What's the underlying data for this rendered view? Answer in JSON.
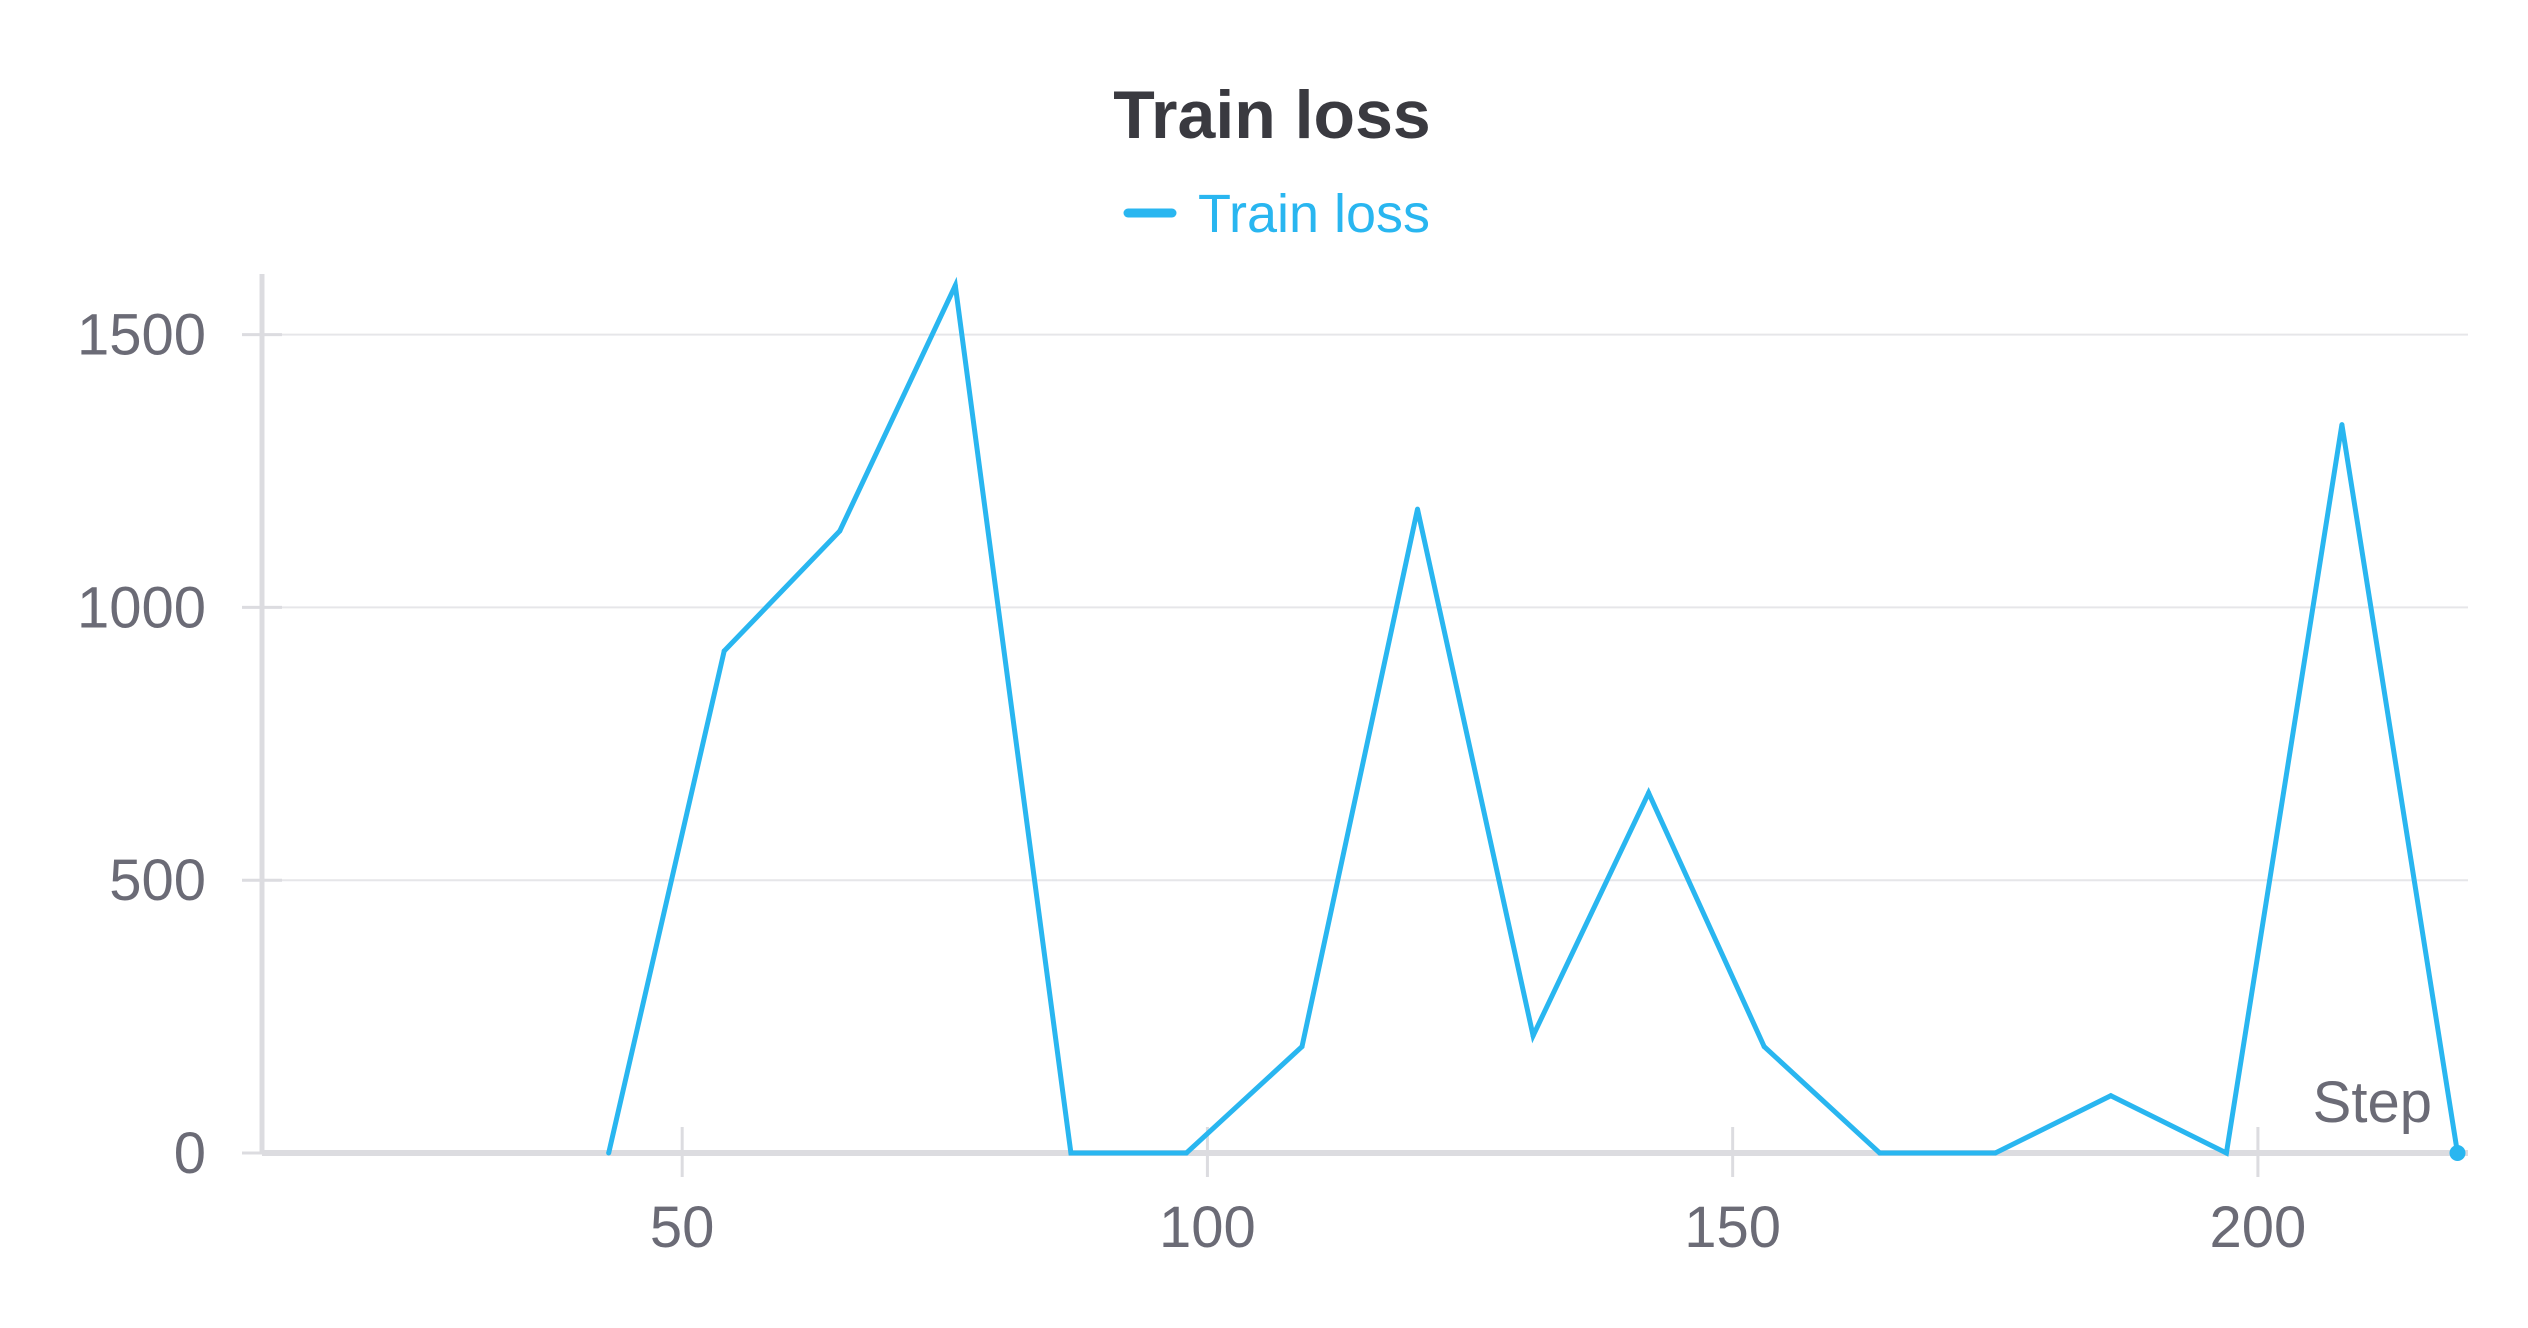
{
  "chart_data": {
    "type": "line",
    "title": "Train loss",
    "xlabel": "Step",
    "ylabel": "",
    "xlim": [
      10,
      220
    ],
    "ylim": [
      0,
      1600
    ],
    "x_ticks": [
      50,
      100,
      150,
      200
    ],
    "y_ticks": [
      0,
      500,
      1000,
      1500
    ],
    "x_tick_labels": [
      "50",
      "100",
      "150",
      "200"
    ],
    "y_tick_labels": [
      "0",
      "500",
      "1000",
      "1500"
    ],
    "grid": true,
    "legend": "top-center",
    "series": [
      {
        "name": "Train loss",
        "color": "#29b6f0",
        "x": [
          43,
          54,
          65,
          76,
          87,
          98,
          109,
          120,
          131,
          142,
          153,
          164,
          175,
          186,
          197,
          208,
          219
        ],
        "y": [
          0,
          920,
          1140,
          1590,
          0,
          0,
          195,
          1180,
          215,
          660,
          195,
          0,
          0,
          105,
          0,
          1335,
          0
        ]
      }
    ]
  }
}
